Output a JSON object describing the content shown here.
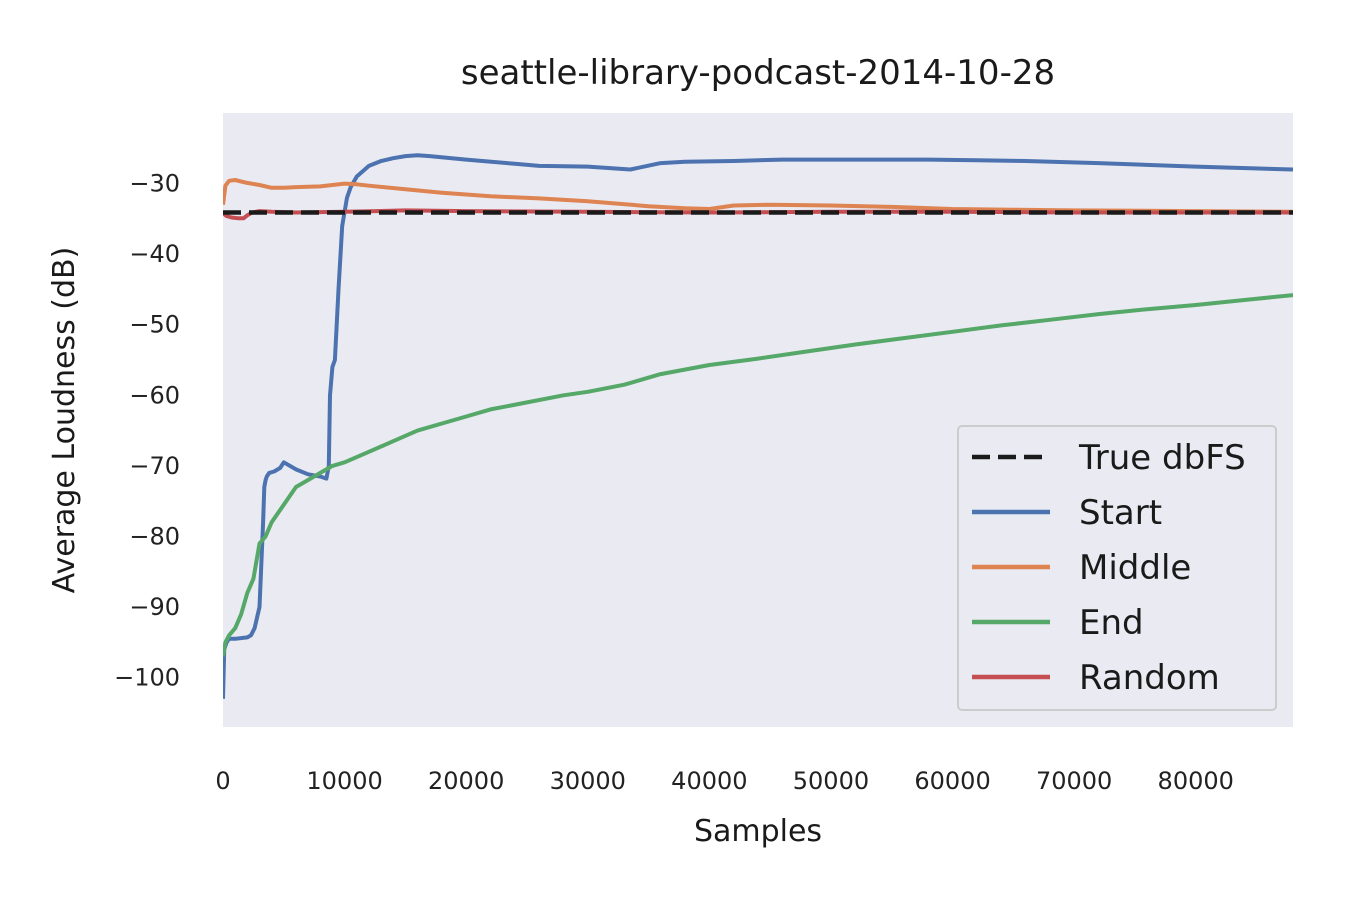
{
  "chart_data": {
    "type": "line",
    "title": "seattle-library-podcast-2014-10-28",
    "xlabel": "Samples",
    "ylabel": "Average Loudness (dB)",
    "xlim": [
      0,
      88000
    ],
    "ylim": [
      -107,
      -20
    ],
    "xticks": [
      0,
      10000,
      20000,
      30000,
      40000,
      50000,
      60000,
      70000,
      80000
    ],
    "xtick_labels": [
      "0",
      "10000",
      "20000",
      "30000",
      "40000",
      "50000",
      "60000",
      "70000",
      "80000"
    ],
    "yticks": [
      -30,
      -40,
      -50,
      -60,
      -70,
      -80,
      -90,
      -100
    ],
    "ytick_labels": [
      "−30",
      "−40",
      "−50",
      "−60",
      "−70",
      "−80",
      "−90",
      "−100"
    ],
    "grid": false,
    "background": "#eaeaf2",
    "legend_position": "lower-right",
    "series": [
      {
        "name": "True dbFS",
        "color": "#1a1a1a",
        "dashed": true,
        "x": [
          0,
          88000
        ],
        "y": [
          -34.1,
          -34.1
        ]
      },
      {
        "name": "Start",
        "color": "#4c72b0",
        "dashed": false,
        "x": [
          0,
          100,
          300,
          500,
          1000,
          2000,
          2300,
          2600,
          3000,
          3300,
          3400,
          3500,
          3600,
          3800,
          4200,
          4700,
          5000,
          6000,
          7000,
          8000,
          8500,
          8700,
          8800,
          9000,
          9200,
          9500,
          9800,
          10000,
          10200,
          10500,
          11000,
          12000,
          13000,
          14000,
          15000,
          16000,
          17000,
          20000,
          24000,
          26000,
          30000,
          33500,
          36000,
          38000,
          42000,
          46000,
          52000,
          58000,
          62000,
          66000,
          72000,
          80000,
          88000
        ],
        "y": [
          -103,
          -96,
          -95,
          -94.5,
          -94.5,
          -94.3,
          -94,
          -93,
          -90,
          -78,
          -73,
          -72,
          -71.5,
          -71,
          -70.8,
          -70.3,
          -69.5,
          -70.5,
          -71.2,
          -71.5,
          -71.8,
          -70,
          -60,
          -56,
          -55,
          -45,
          -36,
          -34,
          -32,
          -30.5,
          -29,
          -27.5,
          -26.8,
          -26.4,
          -26.1,
          -26,
          -26.1,
          -26.6,
          -27.2,
          -27.5,
          -27.6,
          -28,
          -27.1,
          -26.9,
          -26.8,
          -26.6,
          -26.6,
          -26.6,
          -26.7,
          -26.8,
          -27.1,
          -27.6,
          -28
        ]
      },
      {
        "name": "Middle",
        "color": "#dd8452",
        "dashed": false,
        "x": [
          0,
          200,
          500,
          1000,
          1500,
          2000,
          3000,
          4000,
          5000,
          6000,
          8000,
          10000,
          11000,
          12000,
          15000,
          18000,
          22000,
          26000,
          30000,
          35000,
          38000,
          40000,
          42000,
          45000,
          50000,
          55000,
          60000,
          65000,
          70000,
          80000,
          88000
        ],
        "y": [
          -33,
          -30.3,
          -29.6,
          -29.5,
          -29.7,
          -29.9,
          -30.2,
          -30.6,
          -30.6,
          -30.5,
          -30.4,
          -30.0,
          -30.1,
          -30.3,
          -30.8,
          -31.3,
          -31.8,
          -32.1,
          -32.5,
          -33.2,
          -33.5,
          -33.6,
          -33.1,
          -33.0,
          -33.1,
          -33.3,
          -33.6,
          -33.7,
          -33.8,
          -33.9,
          -34.0
        ]
      },
      {
        "name": "End",
        "color": "#55a868",
        "dashed": false,
        "x": [
          0,
          200,
          500,
          1000,
          1500,
          2000,
          2500,
          3000,
          3500,
          4000,
          5000,
          6000,
          7000,
          8000,
          9000,
          10000,
          12000,
          14000,
          16000,
          18000,
          20000,
          22000,
          25000,
          28000,
          30000,
          33000,
          36000,
          40000,
          44000,
          48000,
          52000,
          56000,
          60000,
          64000,
          68000,
          72000,
          76000,
          80000,
          84000,
          88000
        ],
        "y": [
          -97,
          -95,
          -94,
          -93,
          -91,
          -88,
          -86,
          -81,
          -80,
          -78,
          -75.5,
          -73,
          -72,
          -71,
          -70,
          -69.5,
          -68,
          -66.5,
          -65,
          -64,
          -63,
          -62,
          -61,
          -60,
          -59.5,
          -58.5,
          -57,
          -55.7,
          -54.8,
          -53.8,
          -52.8,
          -51.9,
          -51,
          -50.1,
          -49.3,
          -48.5,
          -47.8,
          -47.2,
          -46.5,
          -45.8
        ]
      },
      {
        "name": "Random",
        "color": "#c44e52",
        "dashed": false,
        "x": [
          0,
          300,
          700,
          1200,
          1700,
          2000,
          2400,
          3000,
          4000,
          6000,
          10000,
          15000,
          20000,
          30000,
          40000,
          50000,
          60000,
          70000,
          80000,
          88000
        ],
        "y": [
          -34.2,
          -34.6,
          -34.8,
          -34.9,
          -34.9,
          -34.5,
          -34.1,
          -33.9,
          -34.0,
          -34.1,
          -34.0,
          -33.8,
          -33.9,
          -34.0,
          -34.1,
          -34.0,
          -34.0,
          -34.1,
          -34.1,
          -34.1
        ]
      }
    ]
  }
}
